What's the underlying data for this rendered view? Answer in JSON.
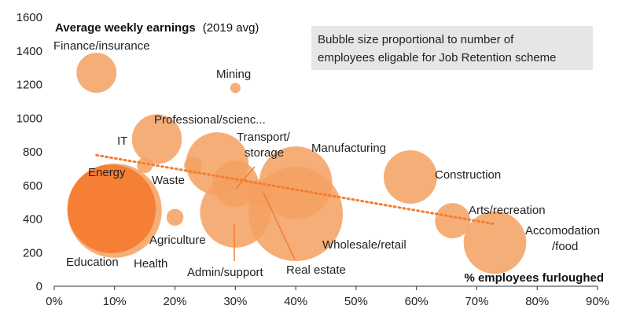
{
  "chart_data": {
    "type": "scatter",
    "title_bold": "Average weekly earnings",
    "title_suffix": "(2019 avg)",
    "xlabel": "% employees furloughed",
    "note_lines": [
      "Bubble size proportional to number of",
      "employees eligable for Job Retention scheme"
    ],
    "xlim": [
      0,
      90
    ],
    "ylim": [
      0,
      1600
    ],
    "xticks": [
      "0%",
      "10%",
      "20%",
      "30%",
      "40%",
      "50%",
      "60%",
      "70%",
      "80%",
      "90%"
    ],
    "yticks": [
      "0",
      "200",
      "400",
      "600",
      "800",
      "1000",
      "1200",
      "1400",
      "1600"
    ],
    "colors": {
      "bubble": "#f5a062",
      "bubble_highlight": "#f47c30",
      "trend": "#f47c30",
      "note_bg": "#e6e6e6",
      "axis": "#333333"
    },
    "trendline": {
      "from": [
        7,
        780
      ],
      "to": [
        73,
        370
      ]
    },
    "points": [
      {
        "label": "Finance/insurance",
        "x": 7,
        "y": 1270,
        "size": 4.5
      },
      {
        "label": "Mining",
        "x": 30,
        "y": 1180,
        "size": 0.3
      },
      {
        "label": "Professional/scienc...",
        "x": 17,
        "y": 875,
        "size": 7
      },
      {
        "label": "IT",
        "x": 15,
        "y": 720,
        "size": 0.7
      },
      {
        "label": "Energy",
        "x": 23,
        "y": 720,
        "size": 0.9
      },
      {
        "label": "Waste",
        "x": 27,
        "y": 730,
        "size": 11
      },
      {
        "label": "Transport/ storage",
        "x": 30,
        "y": 610,
        "size": 6
      },
      {
        "label": "Manufacturing",
        "x": 40,
        "y": 615,
        "size": 15
      },
      {
        "label": "Construction",
        "x": 59,
        "y": 650,
        "size": 8
      },
      {
        "label": "Education",
        "x": 10,
        "y": 450,
        "size": 25
      },
      {
        "label": "Health",
        "x": 9.5,
        "y": 460,
        "size": 22,
        "highlight": true
      },
      {
        "label": "Agriculture",
        "x": 20,
        "y": 410,
        "size": 0.8
      },
      {
        "label": "Admin/support",
        "x": 30,
        "y": 440,
        "size": 14
      },
      {
        "label": "Real estate",
        "x": 34,
        "y": 560,
        "size": 1.8
      },
      {
        "label": "Wholesale/retail",
        "x": 40,
        "y": 430,
        "size": 25
      },
      {
        "label": "Arts/recreation",
        "x": 66,
        "y": 390,
        "size": 3.5
      },
      {
        "label": "Accomodation /food",
        "x": 73,
        "y": 260,
        "size": 11
      }
    ]
  }
}
